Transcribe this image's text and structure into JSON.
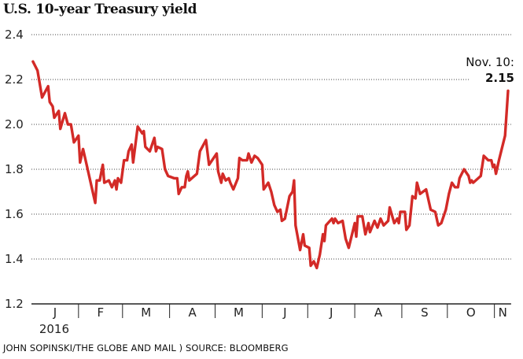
{
  "chart_data": {
    "type": "line",
    "title": "U.S. 10-year Treasury yield",
    "xlabel": "",
    "ylabel": "",
    "ylim": [
      1.2,
      2.4
    ],
    "yticks": [
      "1.2",
      "1.4",
      "1.6",
      "1.8",
      "2.0",
      "2.2",
      "2.4"
    ],
    "xlim": [
      "2016-01-01",
      "2016-11-12"
    ],
    "months": [
      "J",
      "F",
      "M",
      "A",
      "M",
      "J",
      "J",
      "A",
      "S",
      "O",
      "N"
    ],
    "year_label": "2016",
    "grid": "horizontal dotted",
    "line_color": "#d32a27",
    "annotation": {
      "label": "Nov. 10:",
      "value": "2.15"
    },
    "series": [
      {
        "x": [
          "2016-01-02",
          "2016-01-05",
          "2016-01-08",
          "2016-01-12",
          "2016-01-13",
          "2016-01-15",
          "2016-01-16",
          "2016-01-19",
          "2016-01-20",
          "2016-01-23",
          "2016-01-25",
          "2016-01-27",
          "2016-01-29",
          "2016-02-01",
          "2016-02-02",
          "2016-02-04",
          "2016-02-06",
          "2016-02-09",
          "2016-02-12",
          "2016-02-13",
          "2016-02-15",
          "2016-02-17",
          "2016-02-18",
          "2016-02-21",
          "2016-02-23",
          "2016-02-25",
          "2016-02-26",
          "2016-02-27",
          "2016-02-29",
          "2016-03-02",
          "2016-03-04",
          "2016-03-05",
          "2016-03-07",
          "2016-03-08",
          "2016-03-11",
          "2016-03-14",
          "2016-03-15",
          "2016-03-16",
          "2016-03-19",
          "2016-03-22",
          "2016-03-23",
          "2016-03-24",
          "2016-03-27",
          "2016-03-29",
          "2016-03-31",
          "2016-04-04",
          "2016-04-06",
          "2016-04-07",
          "2016-04-09",
          "2016-04-11",
          "2016-04-12",
          "2016-04-13",
          "2016-04-14",
          "2016-04-19",
          "2016-04-21",
          "2016-04-25",
          "2016-04-27",
          "2016-05-02",
          "2016-05-03",
          "2016-05-05",
          "2016-05-06",
          "2016-05-08",
          "2016-05-10",
          "2016-05-11",
          "2016-05-13",
          "2016-05-16",
          "2016-05-17",
          "2016-05-19",
          "2016-05-22",
          "2016-05-23",
          "2016-05-25",
          "2016-05-27",
          "2016-05-29",
          "2016-06-01",
          "2016-06-02",
          "2016-06-05",
          "2016-06-07",
          "2016-06-09",
          "2016-06-11",
          "2016-06-13",
          "2016-06-14",
          "2016-06-16",
          "2016-06-19",
          "2016-06-21",
          "2016-06-22",
          "2016-06-23",
          "2016-06-26",
          "2016-06-28",
          "2016-06-29",
          "2016-07-02",
          "2016-07-03",
          "2016-07-05",
          "2016-07-07",
          "2016-07-09",
          "2016-07-11",
          "2016-07-12",
          "2016-07-13",
          "2016-07-17",
          "2016-07-18",
          "2016-07-19",
          "2016-07-21",
          "2016-07-24",
          "2016-07-26",
          "2016-07-28",
          "2016-08-01",
          "2016-08-02",
          "2016-08-03",
          "2016-08-06",
          "2016-08-08",
          "2016-08-10",
          "2016-08-11",
          "2016-08-14",
          "2016-08-16",
          "2016-08-18",
          "2016-08-20",
          "2016-08-23",
          "2016-08-24",
          "2016-08-27",
          "2016-08-29",
          "2016-08-30",
          "2016-08-31",
          "2016-09-03",
          "2016-09-04",
          "2016-09-06",
          "2016-09-08",
          "2016-09-10",
          "2016-09-11",
          "2016-09-13",
          "2016-09-17",
          "2016-09-20",
          "2016-09-23",
          "2016-09-25",
          "2016-09-27",
          "2016-09-30",
          "2016-10-02",
          "2016-10-04",
          "2016-10-06",
          "2016-10-08",
          "2016-10-09",
          "2016-10-12",
          "2016-10-15",
          "2016-10-16",
          "2016-10-17",
          "2016-10-18",
          "2016-10-23",
          "2016-10-25",
          "2016-10-28",
          "2016-10-30",
          "2016-10-31",
          "2016-11-01",
          "2016-11-02",
          "2016-11-04",
          "2016-11-08",
          "2016-11-10"
        ],
        "y": [
          2.28,
          2.24,
          2.12,
          2.17,
          2.1,
          2.08,
          2.03,
          2.06,
          1.98,
          2.05,
          2.0,
          2.0,
          1.92,
          1.95,
          1.83,
          1.89,
          1.83,
          1.74,
          1.65,
          1.75,
          1.75,
          1.82,
          1.74,
          1.75,
          1.72,
          1.75,
          1.71,
          1.76,
          1.74,
          1.84,
          1.84,
          1.88,
          1.91,
          1.83,
          1.99,
          1.96,
          1.97,
          1.9,
          1.88,
          1.94,
          1.88,
          1.9,
          1.89,
          1.8,
          1.77,
          1.76,
          1.76,
          1.69,
          1.72,
          1.72,
          1.77,
          1.79,
          1.75,
          1.78,
          1.88,
          1.93,
          1.82,
          1.87,
          1.79,
          1.74,
          1.78,
          1.75,
          1.76,
          1.74,
          1.71,
          1.76,
          1.85,
          1.84,
          1.84,
          1.87,
          1.83,
          1.86,
          1.85,
          1.82,
          1.71,
          1.74,
          1.7,
          1.64,
          1.61,
          1.62,
          1.57,
          1.58,
          1.68,
          1.7,
          1.75,
          1.55,
          1.44,
          1.51,
          1.46,
          1.45,
          1.37,
          1.39,
          1.36,
          1.42,
          1.51,
          1.48,
          1.55,
          1.58,
          1.56,
          1.58,
          1.56,
          1.57,
          1.49,
          1.45,
          1.56,
          1.5,
          1.59,
          1.59,
          1.51,
          1.56,
          1.52,
          1.57,
          1.54,
          1.58,
          1.55,
          1.57,
          1.63,
          1.56,
          1.58,
          1.56,
          1.61,
          1.61,
          1.53,
          1.55,
          1.68,
          1.67,
          1.74,
          1.69,
          1.71,
          1.62,
          1.61,
          1.55,
          1.56,
          1.62,
          1.69,
          1.74,
          1.72,
          1.72,
          1.76,
          1.8,
          1.77,
          1.74,
          1.75,
          1.74,
          1.77,
          1.86,
          1.84,
          1.84,
          1.81,
          1.82,
          1.78,
          1.84,
          1.95,
          2.15
        ]
      }
    ]
  },
  "credit": "JOHN SOPINSKI/THE GLOBE AND MAIL ) SOURCE: BLOOMBERG"
}
